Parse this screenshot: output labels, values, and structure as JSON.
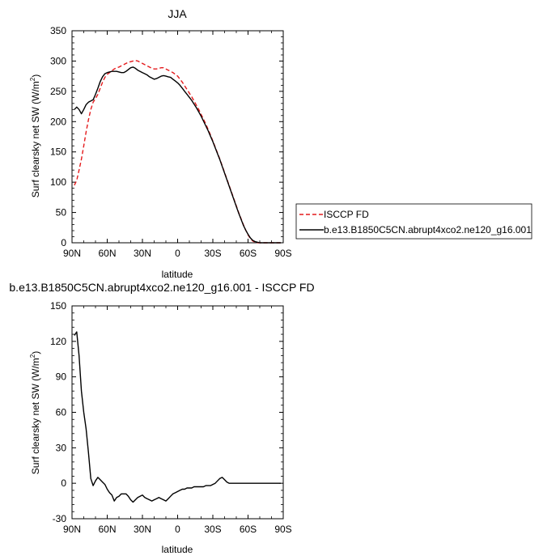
{
  "chart_data": [
    {
      "type": "line",
      "title": "JJA",
      "xlabel": "latitude",
      "ylabel_main": "Surf clearsky net SW (W/m",
      "ylabel_sup": "2",
      "ylabel_close": ")",
      "xlim": [
        90,
        -90
      ],
      "ylim": [
        0,
        350
      ],
      "xticks": [
        90,
        60,
        30,
        0,
        -30,
        -60,
        -90
      ],
      "xtick_labels": [
        "90N",
        "60N",
        "30N",
        "0",
        "30S",
        "60S",
        "90S"
      ],
      "yticks": [
        0,
        50,
        100,
        150,
        200,
        250,
        300,
        350
      ],
      "ytick_labels": [
        "0",
        "50",
        "100",
        "150",
        "200",
        "250",
        "300",
        "350"
      ],
      "legend_position": "right",
      "series": [
        {
          "name": "ISCCP FD",
          "color": "#e41a1c",
          "dash": "dashed",
          "points": [
            [
              88,
              95
            ],
            [
              86,
              103
            ],
            [
              84,
              120
            ],
            [
              82,
              138
            ],
            [
              80,
              160
            ],
            [
              78,
              183
            ],
            [
              76,
              203
            ],
            [
              74,
              220
            ],
            [
              72,
              232
            ],
            [
              70,
              238
            ],
            [
              68,
              245
            ],
            [
              66,
              255
            ],
            [
              64,
              265
            ],
            [
              62,
              273
            ],
            [
              60,
              278
            ],
            [
              58,
              281
            ],
            [
              56,
              284
            ],
            [
              54,
              287
            ],
            [
              52,
              289
            ],
            [
              50,
              290
            ],
            [
              48,
              292
            ],
            [
              46,
              294
            ],
            [
              44,
              296
            ],
            [
              42,
              298
            ],
            [
              40,
              299
            ],
            [
              38,
              300
            ],
            [
              36,
              301
            ],
            [
              34,
              300
            ],
            [
              32,
              298
            ],
            [
              30,
              296
            ],
            [
              28,
              294
            ],
            [
              26,
              292
            ],
            [
              24,
              290
            ],
            [
              22,
              288
            ],
            [
              20,
              287
            ],
            [
              18,
              287
            ],
            [
              16,
              288
            ],
            [
              14,
              289
            ],
            [
              12,
              289
            ],
            [
              10,
              287
            ],
            [
              8,
              285
            ],
            [
              6,
              283
            ],
            [
              4,
              281
            ],
            [
              2,
              278
            ],
            [
              0,
              275
            ],
            [
              -2,
              270
            ],
            [
              -4,
              265
            ],
            [
              -6,
              259
            ],
            [
              -8,
              253
            ],
            [
              -10,
              247
            ],
            [
              -12,
              241
            ],
            [
              -14,
              234
            ],
            [
              -16,
              227
            ],
            [
              -18,
              220
            ],
            [
              -20,
              212
            ],
            [
              -22,
              204
            ],
            [
              -24,
              196
            ],
            [
              -26,
              187
            ],
            [
              -28,
              178
            ],
            [
              -30,
              168
            ],
            [
              -32,
              158
            ],
            [
              -34,
              148
            ],
            [
              -36,
              138
            ],
            [
              -38,
              127
            ],
            [
              -40,
              116
            ],
            [
              -42,
              105
            ],
            [
              -44,
              94
            ],
            [
              -46,
              83
            ],
            [
              -48,
              72
            ],
            [
              -50,
              61
            ],
            [
              -52,
              50
            ],
            [
              -54,
              40
            ],
            [
              -56,
              30
            ],
            [
              -58,
              21
            ],
            [
              -60,
              13
            ],
            [
              -62,
              7
            ],
            [
              -64,
              3
            ],
            [
              -66,
              1
            ],
            [
              -68,
              0
            ],
            [
              -70,
              0
            ],
            [
              -72,
              0
            ],
            [
              -76,
              0
            ],
            [
              -80,
              0
            ],
            [
              -84,
              0
            ],
            [
              -88,
              0
            ]
          ]
        },
        {
          "name": "b.e13.B1850C5CN.abrupt4xco2.ne120_g16.001",
          "color": "#000000",
          "dash": "solid",
          "points": [
            [
              88,
              220
            ],
            [
              86,
              224
            ],
            [
              84,
              220
            ],
            [
              82,
              213
            ],
            [
              80,
              220
            ],
            [
              78,
              228
            ],
            [
              76,
              232
            ],
            [
              74,
              234
            ],
            [
              72,
              236
            ],
            [
              70,
              245
            ],
            [
              68,
              255
            ],
            [
              66,
              266
            ],
            [
              64,
              274
            ],
            [
              62,
              279
            ],
            [
              60,
              281
            ],
            [
              58,
              282
            ],
            [
              56,
              283
            ],
            [
              54,
              283
            ],
            [
              52,
              283
            ],
            [
              50,
              282
            ],
            [
              48,
              281
            ],
            [
              46,
              281
            ],
            [
              44,
              283
            ],
            [
              42,
              286
            ],
            [
              40,
              289
            ],
            [
              38,
              290
            ],
            [
              36,
              288
            ],
            [
              34,
              285
            ],
            [
              32,
              283
            ],
            [
              30,
              281
            ],
            [
              28,
              279
            ],
            [
              26,
              277
            ],
            [
              24,
              274
            ],
            [
              22,
              272
            ],
            [
              20,
              270
            ],
            [
              18,
              271
            ],
            [
              16,
              273
            ],
            [
              14,
              275
            ],
            [
              12,
              276
            ],
            [
              10,
              275
            ],
            [
              8,
              274
            ],
            [
              6,
              273
            ],
            [
              4,
              270
            ],
            [
              2,
              267
            ],
            [
              0,
              264
            ],
            [
              -2,
              260
            ],
            [
              -4,
              255
            ],
            [
              -6,
              250
            ],
            [
              -8,
              245
            ],
            [
              -10,
              240
            ],
            [
              -12,
              235
            ],
            [
              -14,
              229
            ],
            [
              -16,
              223
            ],
            [
              -18,
              216
            ],
            [
              -20,
              209
            ],
            [
              -22,
              201
            ],
            [
              -24,
              193
            ],
            [
              -26,
              185
            ],
            [
              -28,
              176
            ],
            [
              -30,
              167
            ],
            [
              -32,
              157
            ],
            [
              -34,
              147
            ],
            [
              -36,
              137
            ],
            [
              -38,
              126
            ],
            [
              -40,
              115
            ],
            [
              -42,
              104
            ],
            [
              -44,
              93
            ],
            [
              -46,
              82
            ],
            [
              -48,
              71
            ],
            [
              -50,
              60
            ],
            [
              -52,
              49
            ],
            [
              -54,
              39
            ],
            [
              -56,
              29
            ],
            [
              -58,
              21
            ],
            [
              -60,
              14
            ],
            [
              -62,
              8
            ],
            [
              -64,
              4
            ],
            [
              -66,
              2
            ],
            [
              -68,
              1
            ],
            [
              -70,
              0
            ],
            [
              -72,
              0
            ],
            [
              -76,
              0
            ],
            [
              -80,
              0
            ],
            [
              -84,
              0
            ],
            [
              -88,
              0
            ]
          ]
        }
      ]
    },
    {
      "type": "line",
      "title": "b.e13.B1850C5CN.abrupt4xco2.ne120_g16.001 - ISCCP FD",
      "xlabel": "latitude",
      "ylabel_main": "Surf clearsky net SW (W/m",
      "ylabel_sup": "2",
      "ylabel_close": ")",
      "xlim": [
        90,
        -90
      ],
      "ylim": [
        -30,
        150
      ],
      "xticks": [
        90,
        60,
        30,
        0,
        -30,
        -60,
        -90
      ],
      "xtick_labels": [
        "90N",
        "60N",
        "30N",
        "0",
        "30S",
        "60S",
        "90S"
      ],
      "yticks": [
        -30,
        0,
        30,
        60,
        90,
        120,
        150
      ],
      "ytick_labels": [
        "-30",
        "0",
        "30",
        "60",
        "90",
        "120",
        "150"
      ],
      "series": [
        {
          "color": "#000000",
          "dash": "solid",
          "points": [
            [
              88,
              125
            ],
            [
              86,
              128
            ],
            [
              84,
              108
            ],
            [
              82,
              78
            ],
            [
              80,
              60
            ],
            [
              78,
              46
            ],
            [
              76,
              26
            ],
            [
              74,
              4
            ],
            [
              72,
              -2
            ],
            [
              70,
              2
            ],
            [
              68,
              5
            ],
            [
              66,
              3
            ],
            [
              64,
              1
            ],
            [
              62,
              -1
            ],
            [
              60,
              -5
            ],
            [
              58,
              -8
            ],
            [
              56,
              -10
            ],
            [
              54,
              -15
            ],
            [
              52,
              -12
            ],
            [
              50,
              -11
            ],
            [
              48,
              -9
            ],
            [
              46,
              -9
            ],
            [
              44,
              -9
            ],
            [
              42,
              -11
            ],
            [
              40,
              -14
            ],
            [
              38,
              -16
            ],
            [
              36,
              -14
            ],
            [
              34,
              -12
            ],
            [
              32,
              -11
            ],
            [
              30,
              -10
            ],
            [
              28,
              -12
            ],
            [
              26,
              -13
            ],
            [
              24,
              -14
            ],
            [
              22,
              -15
            ],
            [
              20,
              -14
            ],
            [
              18,
              -13
            ],
            [
              16,
              -12
            ],
            [
              14,
              -13
            ],
            [
              12,
              -14
            ],
            [
              10,
              -15
            ],
            [
              8,
              -13
            ],
            [
              6,
              -11
            ],
            [
              4,
              -9
            ],
            [
              2,
              -8
            ],
            [
              0,
              -7
            ],
            [
              -2,
              -6
            ],
            [
              -4,
              -5
            ],
            [
              -6,
              -5
            ],
            [
              -8,
              -4
            ],
            [
              -10,
              -4
            ],
            [
              -12,
              -4
            ],
            [
              -14,
              -3
            ],
            [
              -16,
              -3
            ],
            [
              -18,
              -3
            ],
            [
              -20,
              -3
            ],
            [
              -22,
              -3
            ],
            [
              -24,
              -2
            ],
            [
              -26,
              -2
            ],
            [
              -28,
              -2
            ],
            [
              -30,
              -1
            ],
            [
              -32,
              0
            ],
            [
              -34,
              2
            ],
            [
              -36,
              4
            ],
            [
              -38,
              5
            ],
            [
              -40,
              3
            ],
            [
              -42,
              1
            ],
            [
              -44,
              0
            ],
            [
              -46,
              0
            ],
            [
              -48,
              0
            ],
            [
              -50,
              0
            ],
            [
              -52,
              0
            ],
            [
              -54,
              0
            ],
            [
              -56,
              0
            ],
            [
              -58,
              0
            ],
            [
              -60,
              0
            ],
            [
              -62,
              0
            ],
            [
              -64,
              0
            ],
            [
              -66,
              0
            ],
            [
              -68,
              0
            ],
            [
              -70,
              0
            ],
            [
              -72,
              0
            ],
            [
              -76,
              0
            ],
            [
              -80,
              0
            ],
            [
              -84,
              0
            ],
            [
              -88,
              0
            ]
          ]
        }
      ]
    }
  ]
}
